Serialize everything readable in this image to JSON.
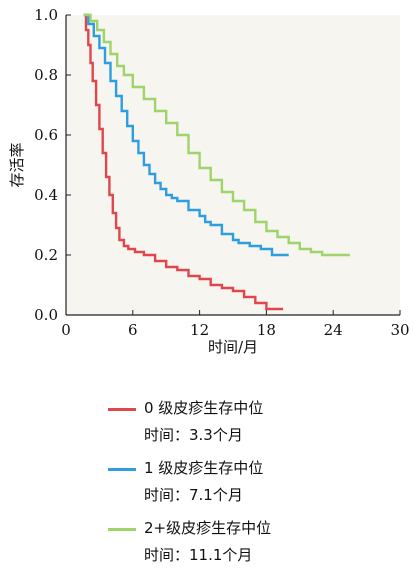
{
  "chart_data": {
    "type": "line",
    "title": "",
    "xlabel": "时间/月",
    "ylabel": "存活率",
    "xlim": [
      0,
      30
    ],
    "ylim": [
      0,
      1.0
    ],
    "x_ticks": [
      "0",
      "6",
      "12",
      "18",
      "24",
      "30"
    ],
    "y_ticks": [
      "0.0",
      "0.2",
      "0.4",
      "0.6",
      "0.8",
      "1.0"
    ],
    "x_tick_values": [
      0,
      6,
      12,
      18,
      24,
      30
    ],
    "y_tick_values": [
      0,
      0.2,
      0.4,
      0.6,
      0.8,
      1.0
    ],
    "grid": false,
    "legend_position": "bottom",
    "series": [
      {
        "name": "0 级皮疹生存中位",
        "name_line2": "时间：3.3个月",
        "color": "#e0474c",
        "x": [
          1.6,
          1.8,
          2.0,
          2.2,
          2.4,
          2.7,
          3.0,
          3.3,
          3.6,
          3.9,
          4.2,
          4.5,
          4.8,
          5.2,
          5.6,
          6.2,
          7.0,
          8.0,
          9.0,
          10.0,
          11.0,
          12.0,
          13.0,
          14.0,
          15.0,
          16.0,
          17.0,
          18.0,
          19.5
        ],
        "y": [
          1.0,
          0.95,
          0.9,
          0.84,
          0.78,
          0.7,
          0.62,
          0.54,
          0.46,
          0.4,
          0.34,
          0.29,
          0.25,
          0.23,
          0.22,
          0.21,
          0.2,
          0.18,
          0.16,
          0.15,
          0.13,
          0.12,
          0.1,
          0.09,
          0.08,
          0.06,
          0.04,
          0.02,
          0.02
        ]
      },
      {
        "name": "1 级皮疹生存中位",
        "name_line2": "时间：7.1个月",
        "color": "#2f9ee0",
        "x": [
          1.6,
          2.0,
          2.5,
          3.0,
          3.5,
          4.0,
          4.5,
          5.0,
          5.5,
          6.0,
          6.5,
          7.0,
          7.5,
          8.0,
          8.5,
          9.0,
          9.5,
          10.0,
          11.0,
          12.0,
          12.5,
          13.0,
          14.0,
          15.0,
          15.5,
          16.5,
          17.5,
          18.5,
          20.0
        ],
        "y": [
          1.0,
          0.97,
          0.93,
          0.89,
          0.84,
          0.78,
          0.73,
          0.68,
          0.63,
          0.58,
          0.54,
          0.5,
          0.47,
          0.44,
          0.42,
          0.4,
          0.39,
          0.38,
          0.35,
          0.33,
          0.31,
          0.3,
          0.27,
          0.25,
          0.24,
          0.23,
          0.22,
          0.2,
          0.2
        ]
      },
      {
        "name": "2+级皮疹生存中位",
        "name_line2": "时间：11.1个月",
        "color": "#9fd36b",
        "x": [
          1.6,
          2.2,
          2.8,
          3.4,
          4.0,
          4.6,
          5.2,
          6.0,
          7.0,
          8.0,
          9.0,
          10.0,
          11.0,
          12.0,
          13.0,
          14.0,
          15.0,
          16.0,
          17.0,
          18.0,
          19.0,
          20.0,
          21.0,
          22.0,
          23.0,
          24.0,
          25.5
        ],
        "y": [
          1.0,
          0.98,
          0.95,
          0.91,
          0.87,
          0.83,
          0.8,
          0.76,
          0.72,
          0.68,
          0.64,
          0.6,
          0.54,
          0.49,
          0.45,
          0.41,
          0.38,
          0.35,
          0.31,
          0.28,
          0.26,
          0.24,
          0.22,
          0.21,
          0.2,
          0.2,
          0.2
        ]
      }
    ]
  }
}
